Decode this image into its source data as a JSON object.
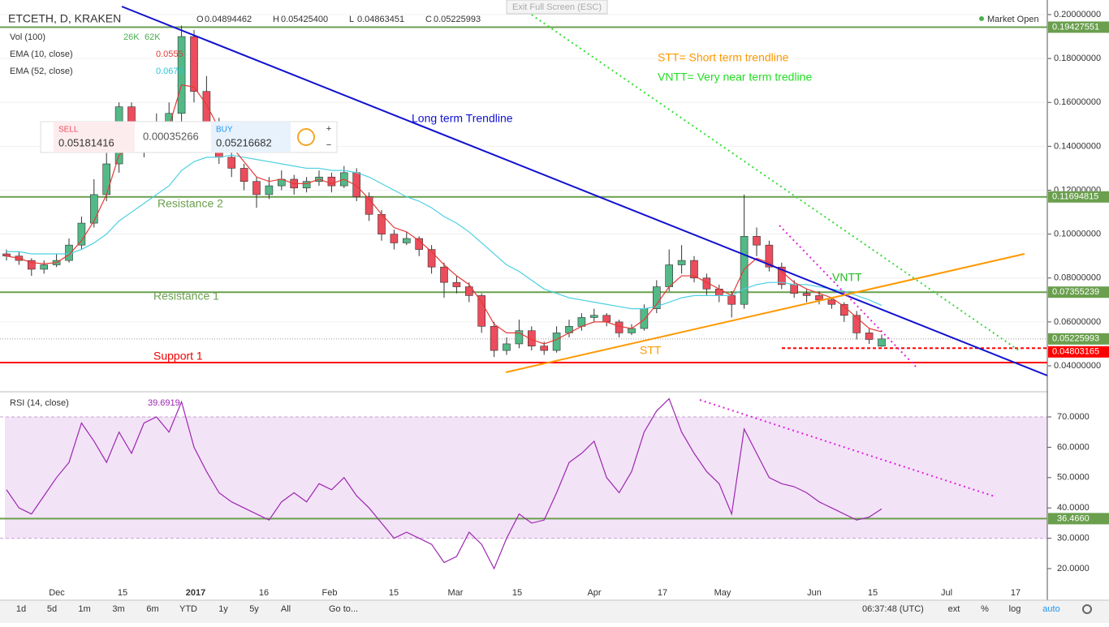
{
  "header": {
    "symbol": "ETCETH, D, KRAKEN",
    "ohlc": [
      "O",
      "0.04894462",
      "H",
      "0.05425400",
      "L",
      "0.04863451",
      "C",
      "0.05225993"
    ],
    "market": "Market Open",
    "fullscreen": "Exit Full Screen (ESC)",
    "vol": [
      "Vol (100)",
      "26K",
      "62K"
    ],
    "ema10": [
      "EMA (10, close)",
      "0.0555"
    ],
    "ema52": [
      "EMA (52, close)",
      "0.0675"
    ],
    "rsi": "RSI (14, close)"
  },
  "trade": {
    "sell": "SELL",
    "sell_price": "0.05181416",
    "spread": "0.00035266",
    "buy": "BUY",
    "buy_price": "0.05216682"
  },
  "chart_data": {
    "type": "candlestick",
    "up_color": "#53b987",
    "down_color": "#eb4d5c",
    "ema10_color": "#e53935",
    "ema52_color": "#4dd0e1",
    "rsi_color": "#9c27b0",
    "yticks": [
      {
        "value": 0.2,
        "label": "0.20000000"
      },
      {
        "value": 0.18,
        "label": "0.18000000"
      },
      {
        "value": 0.16,
        "label": "0.16000000"
      },
      {
        "value": 0.14,
        "label": "0.14000000"
      },
      {
        "value": 0.12,
        "label": "0.12000000"
      },
      {
        "value": 0.1,
        "label": "0.10000000"
      },
      {
        "value": 0.08,
        "label": "0.08000000"
      },
      {
        "value": 0.06,
        "label": "0.06000000"
      },
      {
        "value": 0.04,
        "label": "0.04000000"
      }
    ],
    "levels": [
      {
        "value": 0.19427551,
        "label": "0.19427551",
        "color": "#6a9f4e"
      },
      {
        "value": 0.11694815,
        "label": "0.11694815",
        "color": "#6a9f4e"
      },
      {
        "value": 0.07355239,
        "label": "0.07355239",
        "color": "#6a9f4e"
      },
      {
        "value": 0.05225993,
        "label": "0.05225993",
        "color": "#6a9f4e"
      },
      {
        "value": 0.04803165,
        "label": "0.04803165",
        "color": "#ff0000"
      }
    ],
    "candles": [
      [
        0.091,
        0.093,
        0.088,
        0.09
      ],
      [
        0.09,
        0.092,
        0.086,
        0.088
      ],
      [
        0.088,
        0.089,
        0.081,
        0.084
      ],
      [
        0.084,
        0.088,
        0.082,
        0.086
      ],
      [
        0.086,
        0.091,
        0.085,
        0.088
      ],
      [
        0.088,
        0.098,
        0.087,
        0.095
      ],
      [
        0.095,
        0.108,
        0.093,
        0.105
      ],
      [
        0.105,
        0.125,
        0.103,
        0.118
      ],
      [
        0.118,
        0.138,
        0.115,
        0.132
      ],
      [
        0.132,
        0.16,
        0.128,
        0.158
      ],
      [
        0.158,
        0.16,
        0.14,
        0.145
      ],
      [
        0.145,
        0.15,
        0.135,
        0.14
      ],
      [
        0.14,
        0.155,
        0.138,
        0.15
      ],
      [
        0.15,
        0.16,
        0.146,
        0.155
      ],
      [
        0.155,
        0.195,
        0.15,
        0.19
      ],
      [
        0.19,
        0.193,
        0.16,
        0.165
      ],
      [
        0.165,
        0.172,
        0.146,
        0.15
      ],
      [
        0.15,
        0.153,
        0.132,
        0.135
      ],
      [
        0.135,
        0.138,
        0.126,
        0.13
      ],
      [
        0.13,
        0.132,
        0.12,
        0.124
      ],
      [
        0.124,
        0.126,
        0.112,
        0.118
      ],
      [
        0.118,
        0.126,
        0.116,
        0.122
      ],
      [
        0.122,
        0.129,
        0.12,
        0.125
      ],
      [
        0.125,
        0.127,
        0.118,
        0.121
      ],
      [
        0.121,
        0.126,
        0.119,
        0.124
      ],
      [
        0.124,
        0.129,
        0.122,
        0.126
      ],
      [
        0.126,
        0.128,
        0.119,
        0.122
      ],
      [
        0.122,
        0.131,
        0.121,
        0.128
      ],
      [
        0.128,
        0.13,
        0.115,
        0.117
      ],
      [
        0.117,
        0.119,
        0.106,
        0.109
      ],
      [
        0.109,
        0.111,
        0.097,
        0.1
      ],
      [
        0.1,
        0.102,
        0.093,
        0.096
      ],
      [
        0.096,
        0.101,
        0.095,
        0.098
      ],
      [
        0.098,
        0.099,
        0.09,
        0.093
      ],
      [
        0.093,
        0.095,
        0.082,
        0.085
      ],
      [
        0.085,
        0.087,
        0.071,
        0.078
      ],
      [
        0.078,
        0.081,
        0.073,
        0.076
      ],
      [
        0.076,
        0.078,
        0.069,
        0.072
      ],
      [
        0.072,
        0.073,
        0.055,
        0.058
      ],
      [
        0.058,
        0.06,
        0.044,
        0.047
      ],
      [
        0.047,
        0.053,
        0.045,
        0.05
      ],
      [
        0.05,
        0.061,
        0.048,
        0.056
      ],
      [
        0.056,
        0.058,
        0.047,
        0.049
      ],
      [
        0.049,
        0.051,
        0.045,
        0.047
      ],
      [
        0.047,
        0.058,
        0.046,
        0.055
      ],
      [
        0.055,
        0.061,
        0.053,
        0.058
      ],
      [
        0.058,
        0.064,
        0.056,
        0.062
      ],
      [
        0.062,
        0.066,
        0.06,
        0.063
      ],
      [
        0.063,
        0.064,
        0.058,
        0.06
      ],
      [
        0.06,
        0.061,
        0.053,
        0.055
      ],
      [
        0.055,
        0.059,
        0.054,
        0.057
      ],
      [
        0.057,
        0.068,
        0.056,
        0.066
      ],
      [
        0.066,
        0.079,
        0.064,
        0.076
      ],
      [
        0.076,
        0.093,
        0.074,
        0.086
      ],
      [
        0.086,
        0.095,
        0.082,
        0.088
      ],
      [
        0.088,
        0.09,
        0.078,
        0.08
      ],
      [
        0.08,
        0.082,
        0.072,
        0.075
      ],
      [
        0.075,
        0.077,
        0.069,
        0.072
      ],
      [
        0.072,
        0.074,
        0.062,
        0.068
      ],
      [
        0.068,
        0.118,
        0.066,
        0.099
      ],
      [
        0.099,
        0.103,
        0.09,
        0.095
      ],
      [
        0.095,
        0.097,
        0.083,
        0.085
      ],
      [
        0.085,
        0.087,
        0.075,
        0.077
      ],
      [
        0.077,
        0.079,
        0.071,
        0.073
      ],
      [
        0.073,
        0.075,
        0.069,
        0.072
      ],
      [
        0.072,
        0.074,
        0.068,
        0.07
      ],
      [
        0.07,
        0.071,
        0.066,
        0.068
      ],
      [
        0.068,
        0.069,
        0.06,
        0.063
      ],
      [
        0.063,
        0.065,
        0.052,
        0.055
      ],
      [
        0.055,
        0.057,
        0.05,
        0.052
      ],
      [
        0.04894462,
        0.054254,
        0.04863451,
        0.05225993
      ]
    ],
    "ema10": [
      0.09,
      0.089,
      0.087,
      0.0865,
      0.087,
      0.0906,
      0.097,
      0.106,
      0.118,
      0.136,
      0.14,
      0.14,
      0.145,
      0.149,
      0.168,
      0.167,
      0.159,
      0.148,
      0.14,
      0.133,
      0.126,
      0.124,
      0.125,
      0.123,
      0.123,
      0.125,
      0.123,
      0.125,
      0.122,
      0.116,
      0.109,
      0.103,
      0.101,
      0.097,
      0.092,
      0.086,
      0.081,
      0.077,
      0.069,
      0.059,
      0.055,
      0.055,
      0.052,
      0.05,
      0.052,
      0.055,
      0.058,
      0.06,
      0.06,
      0.058,
      0.057,
      0.061,
      0.068,
      0.076,
      0.081,
      0.081,
      0.078,
      0.075,
      0.072,
      0.084,
      0.089,
      0.087,
      0.083,
      0.078,
      0.075,
      0.073,
      0.071,
      0.067,
      0.062,
      0.057,
      0.0555
    ],
    "ema52": [
      0.092,
      0.092,
      0.091,
      0.091,
      0.091,
      0.091,
      0.093,
      0.096,
      0.1,
      0.106,
      0.11,
      0.114,
      0.118,
      0.122,
      0.129,
      0.133,
      0.135,
      0.135,
      0.136,
      0.135,
      0.134,
      0.133,
      0.132,
      0.131,
      0.13,
      0.13,
      0.129,
      0.129,
      0.128,
      0.126,
      0.123,
      0.12,
      0.117,
      0.115,
      0.112,
      0.108,
      0.105,
      0.101,
      0.096,
      0.091,
      0.086,
      0.083,
      0.079,
      0.075,
      0.073,
      0.071,
      0.07,
      0.069,
      0.068,
      0.067,
      0.066,
      0.066,
      0.067,
      0.069,
      0.071,
      0.072,
      0.072,
      0.072,
      0.072,
      0.075,
      0.077,
      0.078,
      0.078,
      0.077,
      0.077,
      0.076,
      0.075,
      0.074,
      0.072,
      0.07,
      0.0675
    ],
    "rsi_values": [
      46,
      40,
      38,
      44,
      50,
      55,
      68,
      62,
      55,
      65,
      58,
      68,
      70,
      65,
      75,
      60,
      52,
      45,
      42,
      40,
      38,
      36,
      42,
      45,
      42,
      48,
      46,
      50,
      44,
      40,
      35,
      30,
      32,
      30,
      28,
      22,
      24,
      32,
      28,
      20,
      30,
      38,
      35,
      36,
      45,
      55,
      58,
      62,
      50,
      45,
      52,
      65,
      72,
      76,
      65,
      58,
      52,
      48,
      38,
      66,
      58,
      50,
      48,
      47,
      45,
      42,
      40,
      38,
      36,
      37,
      39.6919
    ],
    "rsi_yticks": [
      {
        "value": 70,
        "label": "70.0000"
      },
      {
        "value": 60,
        "label": "60.0000"
      },
      {
        "value": 50,
        "label": "50.0000"
      },
      {
        "value": 40,
        "label": "40.0000"
      },
      {
        "value": 30,
        "label": "30.0000"
      },
      {
        "value": 20,
        "label": "20.0000"
      }
    ],
    "rsi_level": {
      "value": 36.466,
      "label": "36.4660"
    },
    "x_labels": [
      "Dec",
      "15",
      "2017",
      "16",
      "Feb",
      "15",
      "Mar",
      "15",
      "Apr",
      "17",
      "May",
      "Jun",
      "15",
      "Jul",
      "17"
    ]
  },
  "annotations": {
    "long": "Long term Trendline",
    "stt_def": "STT= Short term trendline",
    "vntt_def": "VNTT= Very near term tredline",
    "vntt": "VNTT",
    "stt": "STT",
    "r2": "Resistance 2",
    "r1": "Resistance 1",
    "s1": "Support 1"
  },
  "toolbar": {
    "ranges": [
      "1d",
      "5d",
      "1m",
      "3m",
      "6m",
      "YTD",
      "1y",
      "5y",
      "All",
      "Go to..."
    ],
    "time": "06:37:48 (UTC)",
    "options": [
      "ext",
      "%",
      "log",
      "auto"
    ]
  }
}
